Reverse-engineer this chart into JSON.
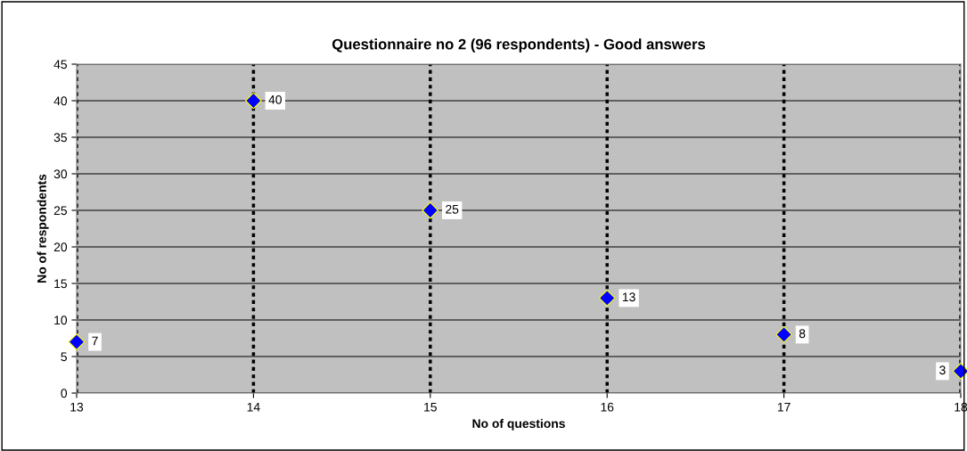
{
  "chart_data": {
    "type": "scatter",
    "title": "Questionnaire no 2 (96 respondents) - Good answers",
    "xlabel": "No of questions",
    "ylabel": "No of respondents",
    "x": [
      13,
      14,
      15,
      16,
      17,
      18
    ],
    "series": [
      {
        "color": "#0000ff",
        "values": [
          7,
          40,
          25,
          13,
          8,
          3
        ]
      }
    ],
    "xlim": [
      13,
      18
    ],
    "xticks": [
      13,
      14,
      15,
      16,
      17,
      18
    ],
    "ylim": [
      0,
      45
    ],
    "yticks": [
      0,
      5,
      10,
      15,
      20,
      25,
      30,
      35,
      40,
      45
    ],
    "grid": true,
    "marker": "diamond",
    "data_labels": true
  }
}
